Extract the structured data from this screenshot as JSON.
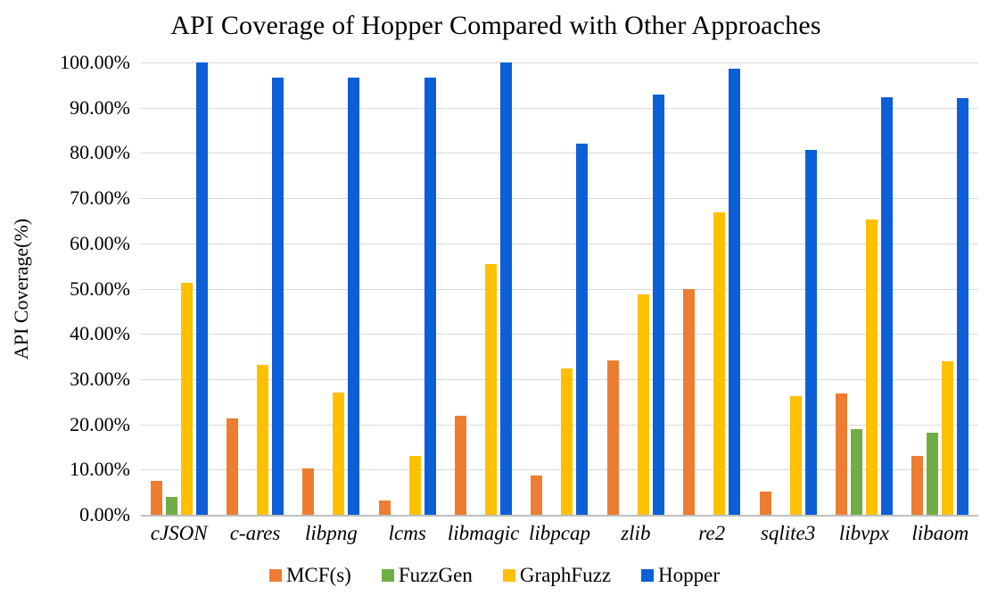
{
  "chart_data": {
    "type": "bar",
    "title": "API Coverage of Hopper Compared with Other Approaches",
    "xlabel": "",
    "ylabel": "API Coverage(%)",
    "ylim": [
      0,
      100
    ],
    "grid": "horizontal",
    "legend_position": "bottom",
    "ytick_labels": [
      "0.00%",
      "10.00%",
      "20.00%",
      "30.00%",
      "40.00%",
      "50.00%",
      "60.00%",
      "70.00%",
      "80.00%",
      "90.00%",
      "100.00%"
    ],
    "categories": [
      "cJSON",
      "c-ares",
      "libpng",
      "lcms",
      "libmagic",
      "libpcap",
      "zlib",
      "re2",
      "sqlite3",
      "libvpx",
      "libaom"
    ],
    "series": [
      {
        "name": "MCF(s)",
        "color": "#ED7D31",
        "values": [
          7.4,
          21.4,
          10.2,
          3.2,
          21.9,
          8.7,
          34.2,
          50.0,
          5.1,
          26.8,
          13.0
        ]
      },
      {
        "name": "FuzzGen",
        "color": "#70AD47",
        "values": [
          3.9,
          null,
          null,
          null,
          null,
          null,
          null,
          null,
          null,
          19.0,
          18.2
        ]
      },
      {
        "name": "GraphFuzz",
        "color": "#FFC000",
        "values": [
          51.2,
          33.1,
          27.1,
          13.1,
          55.4,
          32.4,
          48.7,
          66.9,
          26.3,
          65.2,
          33.9
        ]
      },
      {
        "name": "Hopper",
        "color": "#0D5FD8",
        "values": [
          100.0,
          96.6,
          96.7,
          96.7,
          100.0,
          82.0,
          92.9,
          98.6,
          80.6,
          92.4,
          92.1
        ]
      }
    ]
  },
  "style_colors": {
    "gridline": "#d9d9d9",
    "axis_line": "#bfbfbf",
    "text": "#000000",
    "background": "#ffffff"
  }
}
